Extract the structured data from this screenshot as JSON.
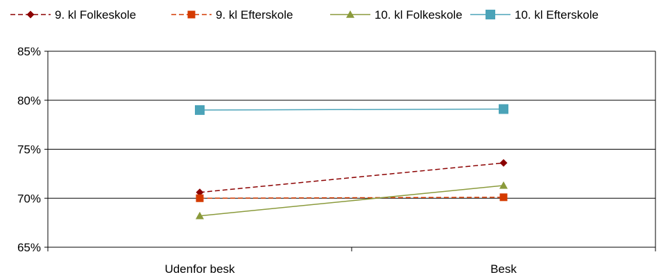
{
  "chart_data": {
    "type": "line",
    "categories": [
      "Udenfor besk",
      "Besk"
    ],
    "ylim": [
      0.65,
      0.85
    ],
    "yticks": [
      {
        "value": 0.65,
        "label": "65%"
      },
      {
        "value": 0.7,
        "label": "70%"
      },
      {
        "value": 0.75,
        "label": "75%"
      },
      {
        "value": 0.8,
        "label": "80%"
      },
      {
        "value": 0.85,
        "label": "85%"
      }
    ],
    "grid": true,
    "legend_position": "top",
    "series": [
      {
        "name": "9. kl Folkeskole",
        "values": [
          0.706,
          0.736
        ],
        "color": "#8B0000",
        "marker": "diamond",
        "dash": true
      },
      {
        "name": "9. kl Efterskole",
        "values": [
          0.7,
          0.701
        ],
        "color": "#D43A00",
        "marker": "square",
        "dash": true
      },
      {
        "name": "10. kl Folkeskole",
        "values": [
          0.682,
          0.713
        ],
        "color": "#8A9A3B",
        "marker": "triangle",
        "dash": false
      },
      {
        "name": "10. kl Efterskole",
        "values": [
          0.79,
          0.791
        ],
        "color": "#4BA3B8",
        "marker": "square",
        "dash": false
      }
    ]
  }
}
